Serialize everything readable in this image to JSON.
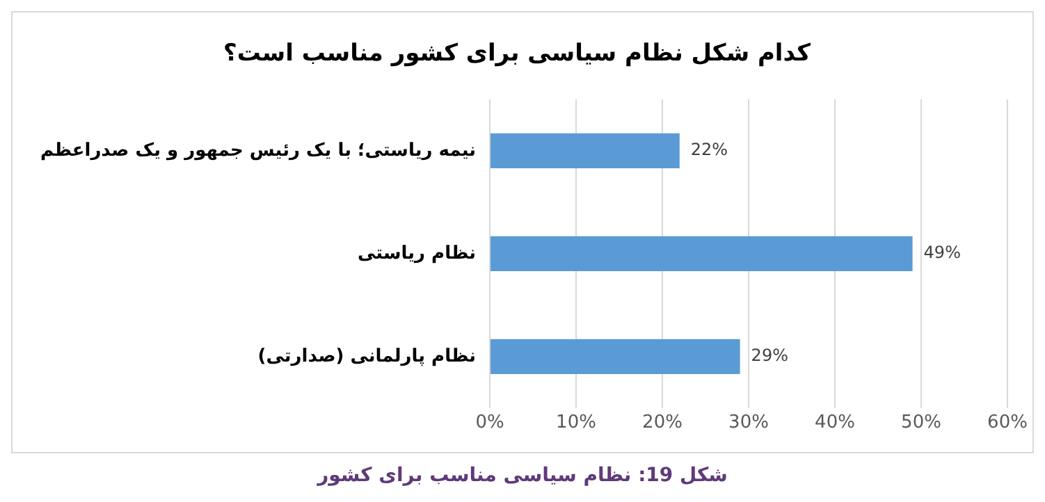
{
  "chart_data": {
    "type": "bar",
    "orientation": "horizontal",
    "title": "کدام شکل نظام سیاسی برای کشور مناسب است؟",
    "categories": [
      "نیمه ریاستی؛ با یک رئیس جمهور و یک صدراعظم",
      "نظام ریاستی",
      "نظام پارلمانی (صدارتی)"
    ],
    "values": [
      22,
      49,
      29
    ],
    "value_labels": [
      "22%",
      "49%",
      "29%"
    ],
    "color": "#5b9bd5",
    "xlim": [
      0,
      60
    ],
    "xticks": [
      {
        "value": 0,
        "label": "0%"
      },
      {
        "value": 10,
        "label": "10%"
      },
      {
        "value": 20,
        "label": "20%"
      },
      {
        "value": 30,
        "label": "30%"
      },
      {
        "value": 40,
        "label": "40%"
      },
      {
        "value": 50,
        "label": "50%"
      },
      {
        "value": 60,
        "label": "60%"
      }
    ],
    "grid": "x",
    "legend": false,
    "annotations": [
      "شکل 19: نظام سیاسی مناسب برای کشور"
    ]
  }
}
